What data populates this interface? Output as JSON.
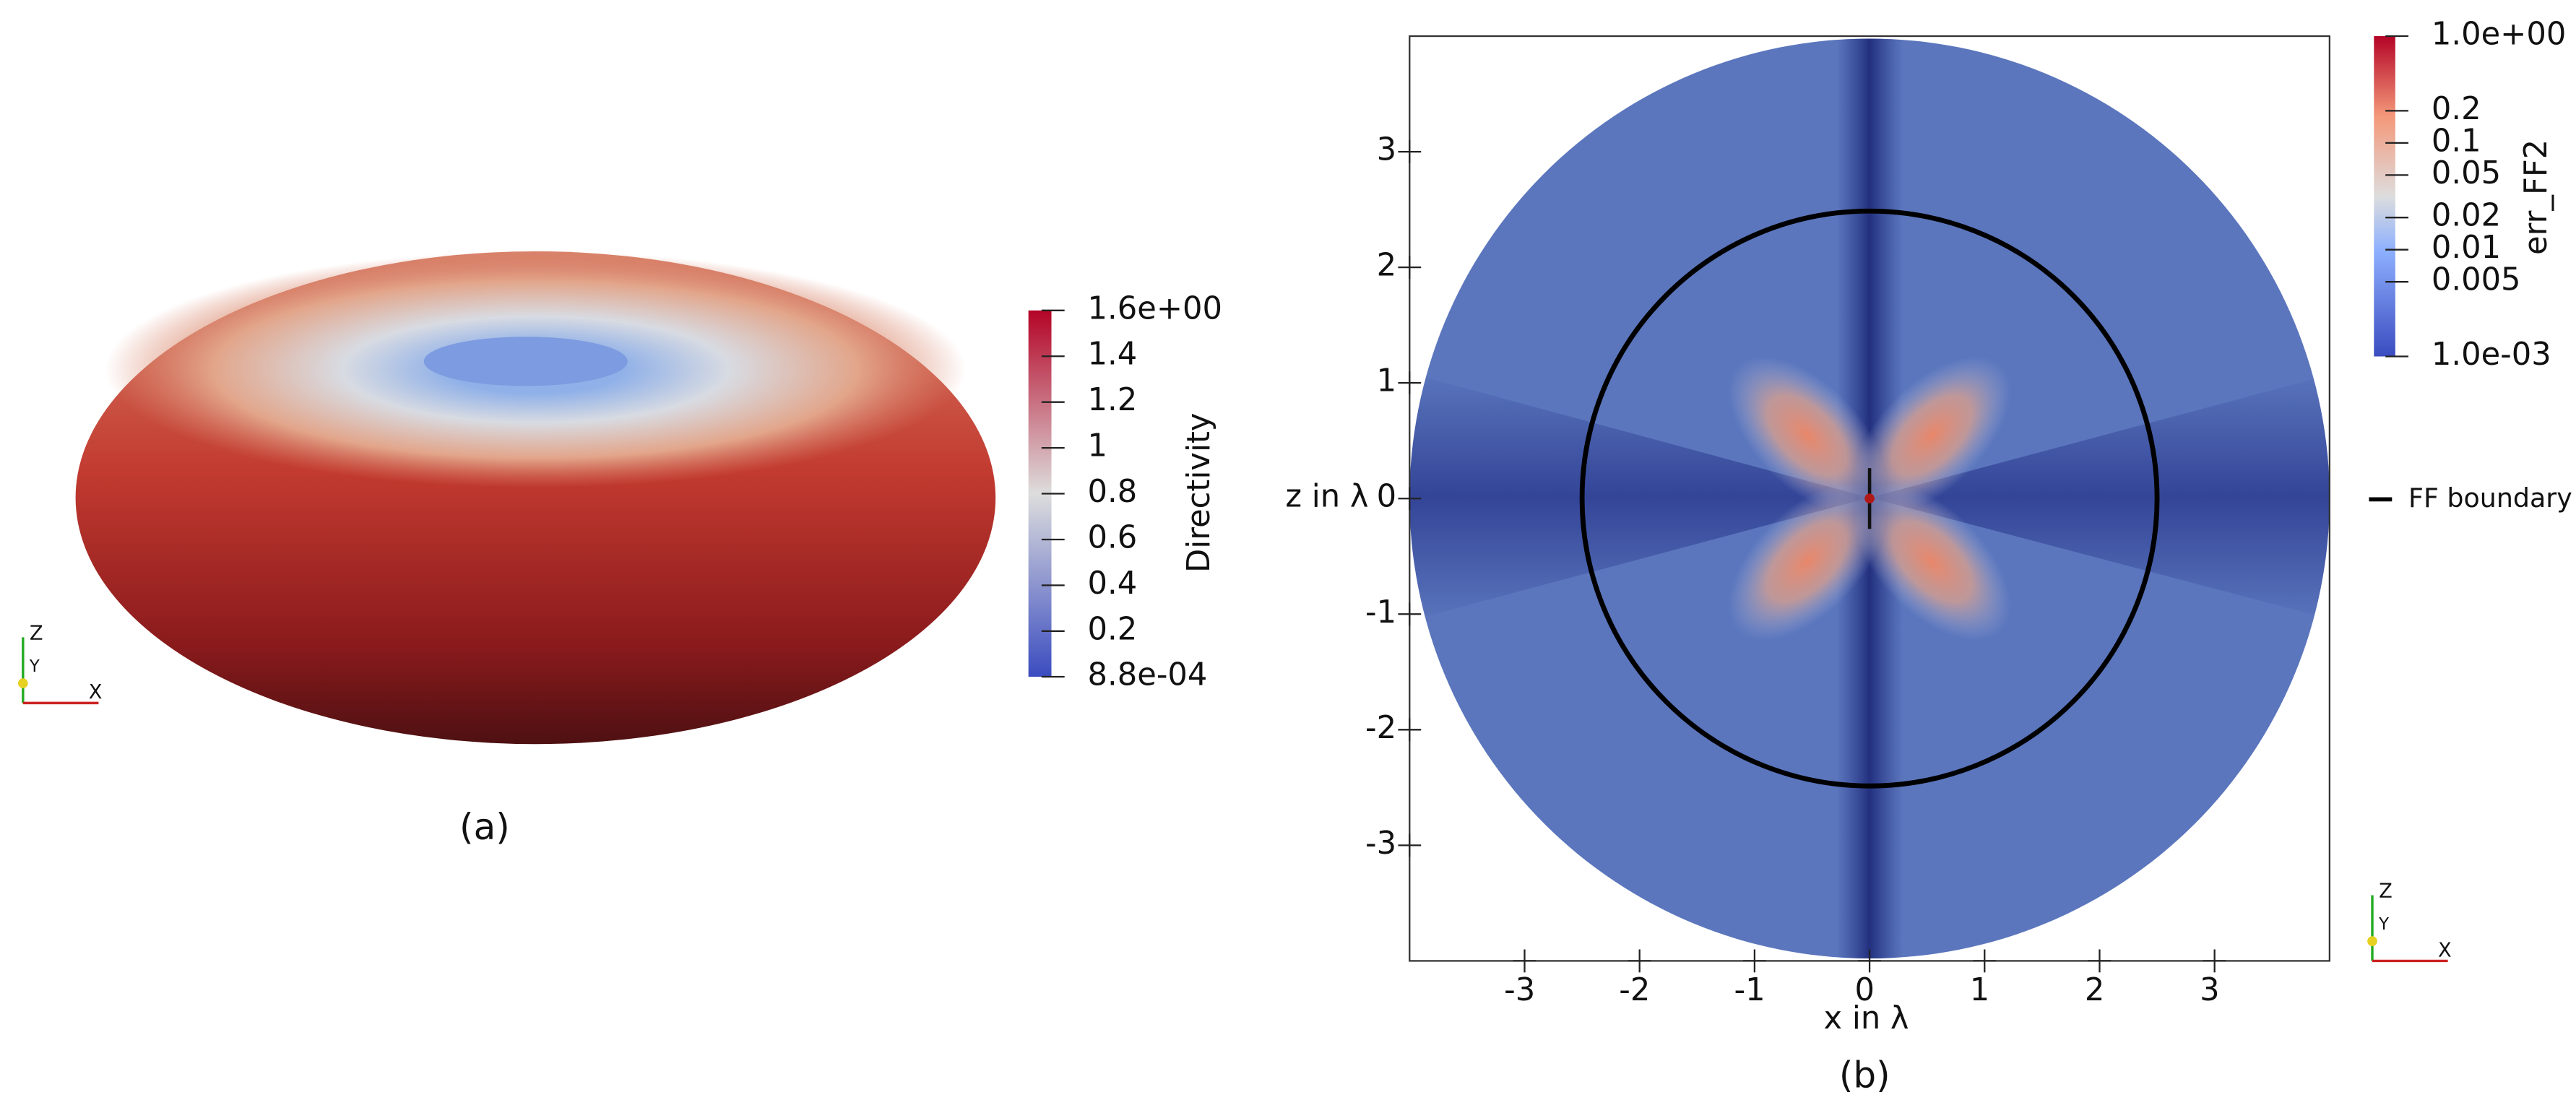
{
  "chart_data": [
    {
      "type": "surface3d",
      "caption": "(a)",
      "colorbar": {
        "label": "Directivity",
        "lim": [
          0.00088,
          1.6
        ],
        "ticks": [
          {
            "value": 1.6,
            "label": "1.6e+00"
          },
          1.4,
          1.2,
          1,
          0.8,
          0.6,
          0.4,
          0.2,
          {
            "value": 0.00088,
            "label": "8.8e-04"
          }
        ]
      },
      "axes_labels": [
        "Z",
        "Y",
        "X"
      ]
    },
    {
      "type": "field2d",
      "caption": "(b)",
      "xlabel": "x in λ",
      "ylabel": "z in λ",
      "xlim": [
        -4,
        4
      ],
      "ylim": [
        -4,
        4
      ],
      "xticks": [
        -3,
        -2,
        -1,
        0,
        1,
        2,
        3
      ],
      "yticks": [
        -3,
        -2,
        -1,
        0,
        1,
        2,
        3
      ],
      "series": [
        {
          "name": "FF boundary",
          "color": "#000000",
          "radius": 2.5
        }
      ],
      "colorbar": {
        "label": "err_FF2",
        "log": true,
        "lim": [
          0.001,
          1
        ],
        "ticks": [
          {
            "value": 1,
            "label": "1.0e+00"
          },
          0.2,
          0.1,
          0.05,
          0.02,
          0.01,
          0.005,
          {
            "value": 0.001,
            "label": "1.0e-03"
          }
        ]
      },
      "axes_labels": [
        "Z",
        "Y",
        "X"
      ]
    }
  ]
}
